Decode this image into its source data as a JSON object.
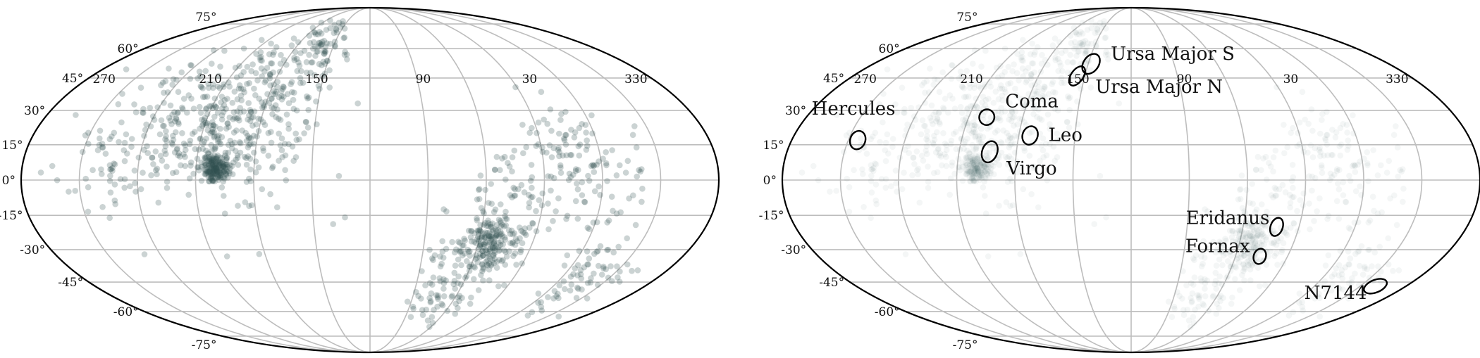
{
  "chart_data": [
    {
      "type": "scatter",
      "projection": "mollweide",
      "x_tick_labels": [
        "270",
        "210",
        "150",
        "90",
        "30",
        "330"
      ],
      "y_tick_labels": [
        "75°",
        "60°",
        "45°",
        "30°",
        "15°",
        "0°",
        "-15°",
        "-30°",
        "-45°",
        "-60°",
        "-75°"
      ],
      "grid": true,
      "marker_color": "#2f4f4f",
      "marker_opacity": 0.25,
      "clusters": [
        {
          "lon": 200,
          "lat": 5,
          "spread": 4,
          "n": 160
        },
        {
          "lon": 205,
          "lat": 15,
          "spread": 14,
          "n": 120
        },
        {
          "lon": 185,
          "lat": 40,
          "spread": 16,
          "n": 140
        },
        {
          "lon": 160,
          "lat": 60,
          "spread": 10,
          "n": 70
        },
        {
          "lon": 230,
          "lat": 30,
          "spread": 18,
          "n": 120
        },
        {
          "lon": 255,
          "lat": 5,
          "spread": 12,
          "n": 60
        },
        {
          "lon": 175,
          "lat": 15,
          "spread": 20,
          "n": 90
        },
        {
          "lon": 55,
          "lat": -25,
          "spread": 6,
          "n": 90
        },
        {
          "lon": 50,
          "lat": -30,
          "spread": 8,
          "n": 70
        },
        {
          "lon": 40,
          "lat": -10,
          "spread": 18,
          "n": 110
        },
        {
          "lon": 70,
          "lat": -45,
          "spread": 14,
          "n": 100
        },
        {
          "lon": 345,
          "lat": -40,
          "spread": 12,
          "n": 70
        },
        {
          "lon": 5,
          "lat": 5,
          "spread": 14,
          "n": 60
        },
        {
          "lon": 20,
          "lat": 20,
          "spread": 10,
          "n": 35
        }
      ]
    },
    {
      "type": "scatter",
      "projection": "mollweide",
      "x_tick_labels": [
        "270",
        "210",
        "150",
        "90",
        "30",
        "330"
      ],
      "y_tick_labels": [
        "75°",
        "60°",
        "45°",
        "30°",
        "15°",
        "0°",
        "-15°",
        "-30°",
        "-45°",
        "-60°",
        "-75°"
      ],
      "grid": true,
      "marker_color": "#2f4f4f",
      "marker_opacity": 0.05,
      "clusters": [
        {
          "lon": 200,
          "lat": 5,
          "spread": 4,
          "n": 160
        },
        {
          "lon": 205,
          "lat": 15,
          "spread": 14,
          "n": 120
        },
        {
          "lon": 185,
          "lat": 40,
          "spread": 16,
          "n": 140
        },
        {
          "lon": 160,
          "lat": 60,
          "spread": 10,
          "n": 70
        },
        {
          "lon": 230,
          "lat": 30,
          "spread": 18,
          "n": 120
        },
        {
          "lon": 255,
          "lat": 5,
          "spread": 12,
          "n": 60
        },
        {
          "lon": 175,
          "lat": 15,
          "spread": 20,
          "n": 90
        },
        {
          "lon": 55,
          "lat": -25,
          "spread": 6,
          "n": 90
        },
        {
          "lon": 50,
          "lat": -30,
          "spread": 8,
          "n": 70
        },
        {
          "lon": 40,
          "lat": -10,
          "spread": 18,
          "n": 110
        },
        {
          "lon": 70,
          "lat": -45,
          "spread": 14,
          "n": 100
        },
        {
          "lon": 345,
          "lat": -40,
          "spread": 12,
          "n": 70
        },
        {
          "lon": 5,
          "lat": 5,
          "spread": 14,
          "n": 60
        },
        {
          "lon": 20,
          "lat": 20,
          "spread": 10,
          "n": 35
        }
      ],
      "regions": [
        {
          "name": "Ursa Major S",
          "lon": 148,
          "lat": 52,
          "w": 5,
          "h": 7
        },
        {
          "name": "Ursa Major N",
          "lon": 155,
          "lat": 46,
          "w": 4,
          "h": 7
        },
        {
          "name": "Coma",
          "lon": 200,
          "lat": 27,
          "w": 5,
          "h": 5
        },
        {
          "name": "Leo",
          "lon": 174,
          "lat": 19,
          "w": 5,
          "h": 6
        },
        {
          "name": "Hercules",
          "lon": 265,
          "lat": 17,
          "w": 5,
          "h": 6
        },
        {
          "name": "Virgo",
          "lon": 194,
          "lat": 12,
          "w": 5,
          "h": 7
        },
        {
          "name": "Eridanus",
          "lon": 42,
          "lat": -20,
          "w": 4,
          "h": 6
        },
        {
          "name": "Fornax",
          "lon": 46,
          "lat": -33,
          "w": 4,
          "h": 5
        },
        {
          "name": "N7144",
          "lon": 320,
          "lat": -47,
          "w": 8,
          "h": 4
        }
      ]
    }
  ]
}
